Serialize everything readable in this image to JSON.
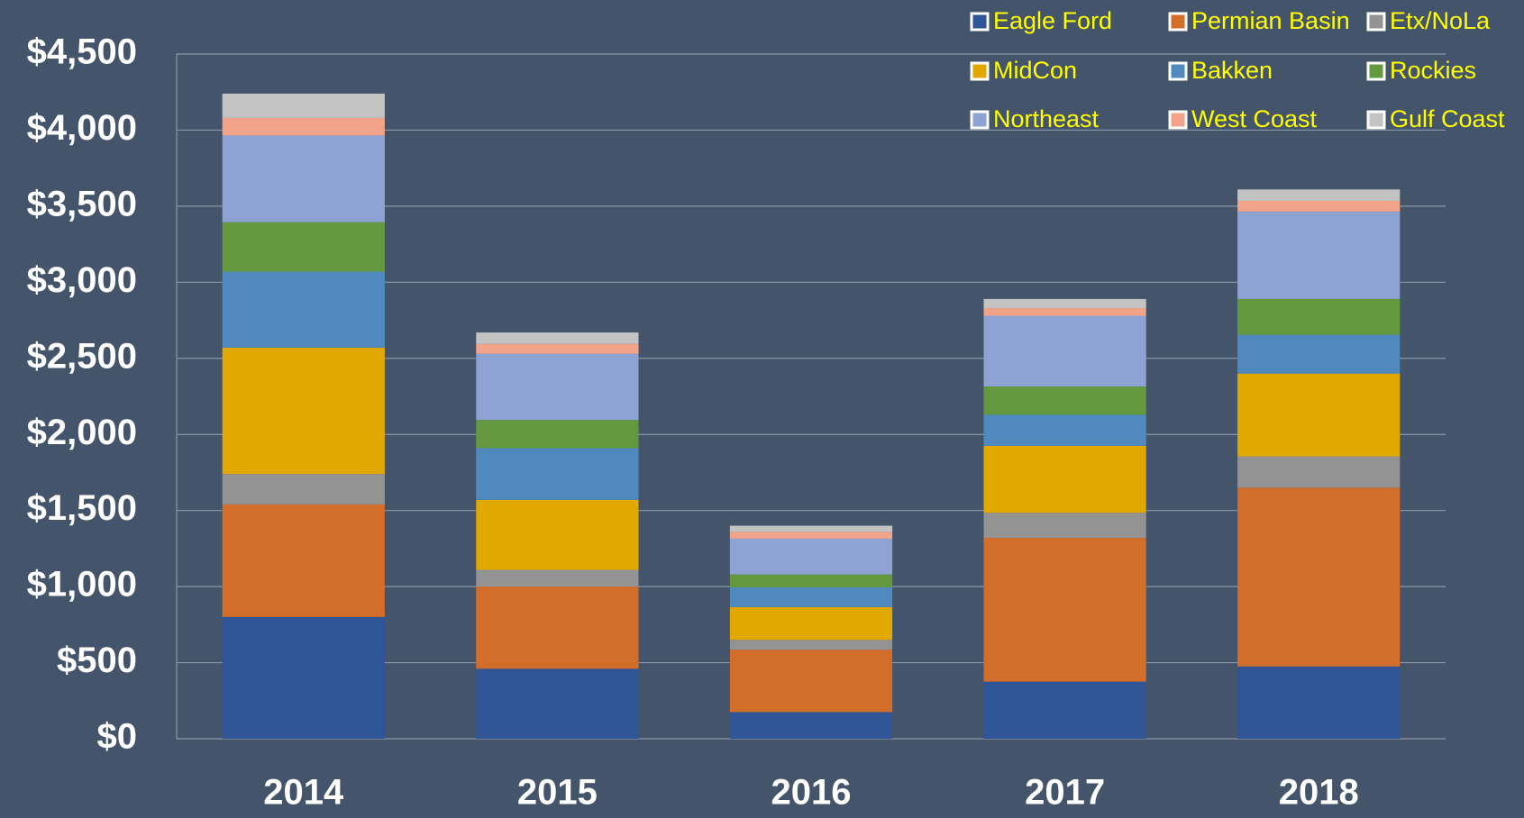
{
  "chart_data": {
    "type": "stacked_bar",
    "categories": [
      "2014",
      "2015",
      "2016",
      "2017",
      "2018"
    ],
    "series": [
      {
        "name": "Eagle Ford",
        "color": "#2f5597",
        "values": [
          800,
          460,
          175,
          375,
          475
        ]
      },
      {
        "name": "Permian Basin",
        "color": "#d26d2a",
        "values": [
          740,
          540,
          410,
          945,
          1175
        ]
      },
      {
        "name": "Etx/NoLa",
        "color": "#939393",
        "values": [
          200,
          110,
          65,
          165,
          205
        ]
      },
      {
        "name": "MidCon",
        "color": "#e0a800",
        "values": [
          830,
          460,
          215,
          440,
          545
        ]
      },
      {
        "name": "Bakken",
        "color": "#4f89bd",
        "values": [
          500,
          340,
          130,
          205,
          255
        ]
      },
      {
        "name": "Rockies",
        "color": "#63983f",
        "values": [
          325,
          185,
          85,
          185,
          235
        ]
      },
      {
        "name": "Northeast",
        "color": "#8fa2d4",
        "values": [
          570,
          435,
          235,
          465,
          575
        ]
      },
      {
        "name": "West Coast",
        "color": "#f1a48a",
        "values": [
          115,
          65,
          45,
          50,
          70
        ]
      },
      {
        "name": "Gulf Coast",
        "color": "#c3c3c3",
        "values": [
          160,
          75,
          40,
          60,
          75
        ]
      }
    ],
    "ylim": [
      0,
      4500
    ],
    "yticks": [
      {
        "value": 0,
        "label": "$0"
      },
      {
        "value": 500,
        "label": "$500"
      },
      {
        "value": 1000,
        "label": "$1,000"
      },
      {
        "value": 1500,
        "label": "$1,500"
      },
      {
        "value": 2000,
        "label": "$2,000"
      },
      {
        "value": 2500,
        "label": "$2,500"
      },
      {
        "value": 3000,
        "label": "$3,000"
      },
      {
        "value": 3500,
        "label": "$3,500"
      },
      {
        "value": 4000,
        "label": "$4,000"
      },
      {
        "value": 4500,
        "label": "$4,500"
      }
    ],
    "grid": true,
    "legend": "top-right"
  }
}
